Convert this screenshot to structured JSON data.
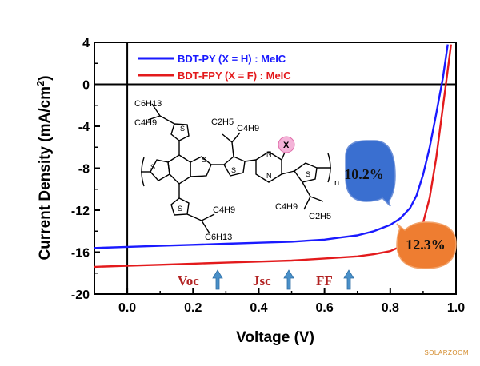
{
  "chart_data": {
    "type": "line",
    "title": "",
    "xlabel": "Voltage (V)",
    "ylabel": "Current Density (mA/cm",
    "ylabel_sup": "2",
    "ylabel_end": ")",
    "xlim": [
      -0.1,
      1.0
    ],
    "ylim": [
      -20,
      4
    ],
    "x_ticks": [
      0.0,
      0.2,
      0.4,
      0.6,
      0.8,
      1.0
    ],
    "x_tick_labels": [
      "0.0",
      "0.2",
      "0.4",
      "0.6",
      "0.8",
      "1.0"
    ],
    "y_ticks": [
      4,
      0,
      -4,
      -8,
      -12,
      -16,
      -20
    ],
    "y_tick_labels": [
      "4",
      "0",
      "-4",
      "-8",
      "-12",
      "-16",
      "-20"
    ],
    "grid": false,
    "legend_position": "top-left",
    "series": [
      {
        "name": "BDT-PY (X = H) : MeIC",
        "color": "#1a1aff",
        "x": [
          -0.1,
          0.0,
          0.1,
          0.2,
          0.3,
          0.4,
          0.5,
          0.6,
          0.65,
          0.7,
          0.75,
          0.8,
          0.83,
          0.86,
          0.88,
          0.9,
          0.92,
          0.94,
          0.96,
          0.975
        ],
        "y": [
          -15.6,
          -15.5,
          -15.4,
          -15.3,
          -15.2,
          -15.1,
          -15.0,
          -14.8,
          -14.6,
          -14.4,
          -14.0,
          -13.4,
          -12.8,
          -11.8,
          -10.6,
          -8.6,
          -6.0,
          -2.8,
          0.6,
          3.8
        ]
      },
      {
        "name": "BDT-FPY (X = F) : MeIC",
        "color": "#e31a1c",
        "x": [
          -0.1,
          0.0,
          0.1,
          0.2,
          0.3,
          0.4,
          0.5,
          0.6,
          0.7,
          0.75,
          0.8,
          0.85,
          0.88,
          0.9,
          0.92,
          0.94,
          0.955,
          0.97,
          0.985
        ],
        "y": [
          -17.4,
          -17.3,
          -17.2,
          -17.1,
          -17.0,
          -16.9,
          -16.8,
          -16.6,
          -16.4,
          -16.2,
          -15.9,
          -15.2,
          -14.4,
          -13.2,
          -10.8,
          -7.0,
          -3.4,
          0.2,
          3.8
        ]
      }
    ],
    "annotations": {
      "params": [
        "Voc",
        "Jsc",
        "FF"
      ],
      "bubble_blue": "10.2%",
      "bubble_orange": "12.3%",
      "bubble_blue_color": "#3a6fd0",
      "bubble_orange_color": "#ee7d31",
      "arrow_color": "#4a90c8"
    },
    "structure": {
      "labels": [
        "C6H13",
        "C4H9",
        "C2H5",
        "C4H9",
        "X",
        "S",
        "S",
        "S",
        "S",
        "N",
        "N",
        "S",
        "S",
        "C4H9",
        "C6H13",
        "C4H9",
        "C2H5",
        "n"
      ]
    }
  },
  "watermark": "SOLARZOOM"
}
